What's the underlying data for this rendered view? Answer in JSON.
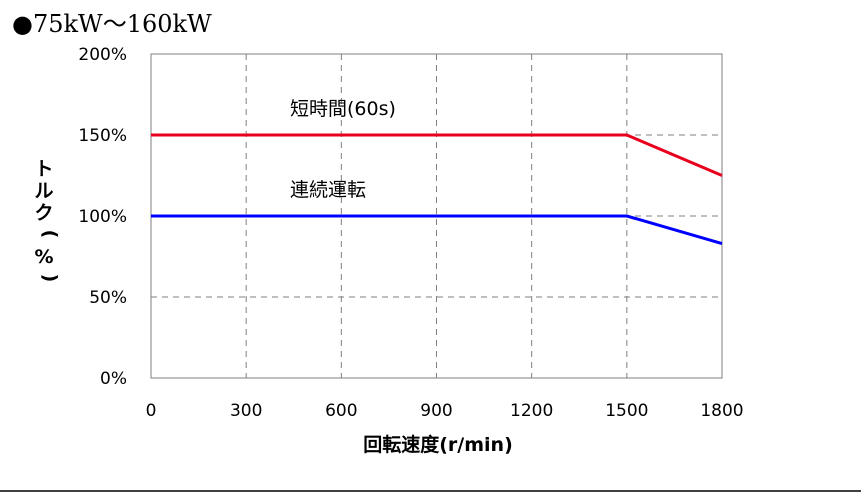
{
  "header": {
    "title": "●75kW～160kW"
  },
  "chart_data": {
    "type": "line",
    "xlabel": "回転速度(r/min)",
    "ylabel": "トルク(%)",
    "xlim": [
      0,
      1800
    ],
    "ylim": [
      0,
      200
    ],
    "x_ticks": [
      0,
      300,
      600,
      900,
      1200,
      1500,
      1800
    ],
    "y_ticks": [
      0,
      50,
      100,
      150,
      200
    ],
    "y_tick_labels": [
      "0%",
      "50%",
      "100%",
      "150%",
      "200%"
    ],
    "grid": true,
    "series": [
      {
        "name": "短時間(60s)",
        "color": "#e8001c",
        "x": [
          0,
          1500,
          1800
        ],
        "y": [
          150,
          150,
          125
        ]
      },
      {
        "name": "連続運転",
        "color": "#0000ff",
        "x": [
          0,
          1500,
          1800
        ],
        "y": [
          100,
          100,
          83
        ]
      }
    ]
  }
}
